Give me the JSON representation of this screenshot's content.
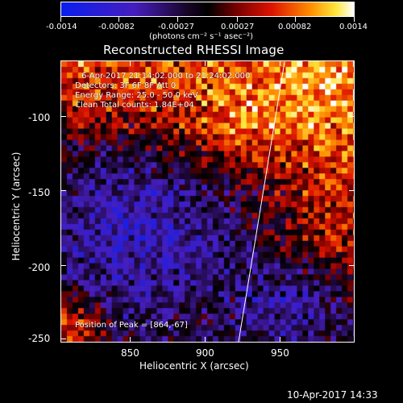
{
  "colorbar": {
    "tick_labels": [
      "-0.0014",
      "-0.00082",
      "-0.00027",
      "0.00027",
      "0.00082",
      "0.0014"
    ],
    "units_label": "(photons cm⁻² s⁻¹ asec⁻²)"
  },
  "plot": {
    "title": "Reconstructed RHESSI Image",
    "info_lines": [
      "6-Apr-2017 21:14:02.000 to 21:24:02.000",
      "Detectors: 3F 6F 8F Att 0",
      "Energy Range: 25.0 - 50.0 keV",
      "Clean    Total counts: 1.84E+04"
    ],
    "peak_label": "Position of Peak = [864,-67]",
    "xlabel": "Heliocentric X (arcsec)",
    "ylabel": "Heliocentric Y (arcsec)",
    "x_ticks": [
      "850",
      "900",
      "950"
    ],
    "y_ticks": [
      "-100",
      "-150",
      "-200",
      "-250"
    ]
  },
  "footer": {
    "timestamp": "10-Apr-2017 14:33"
  },
  "colors": {
    "background": "#000000",
    "foreground": "#ffffff",
    "limb_line": "#ffffff"
  }
}
